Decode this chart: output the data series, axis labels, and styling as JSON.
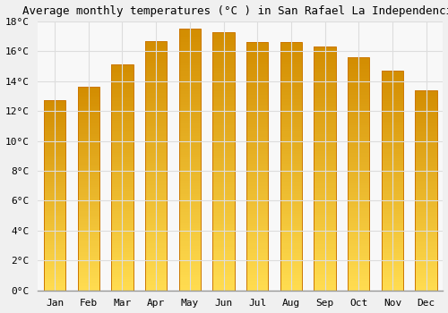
{
  "title": "Average monthly temperatures (°C ) in San Rafael La Independencia",
  "months": [
    "Jan",
    "Feb",
    "Mar",
    "Apr",
    "May",
    "Jun",
    "Jul",
    "Aug",
    "Sep",
    "Oct",
    "Nov",
    "Dec"
  ],
  "values": [
    12.7,
    13.6,
    15.1,
    16.7,
    17.5,
    17.3,
    16.6,
    16.6,
    16.3,
    15.6,
    14.7,
    13.4
  ],
  "bar_color_top": "#F0A000",
  "bar_color_bottom": "#FFD966",
  "bar_edge_color": "#CC7700",
  "ylim": [
    0,
    18
  ],
  "yticks": [
    0,
    2,
    4,
    6,
    8,
    10,
    12,
    14,
    16,
    18
  ],
  "background_color": "#F0F0F0",
  "plot_bg_color": "#F8F8F8",
  "grid_color": "#DDDDDD",
  "title_fontsize": 9,
  "tick_fontsize": 8,
  "bar_width": 0.65
}
